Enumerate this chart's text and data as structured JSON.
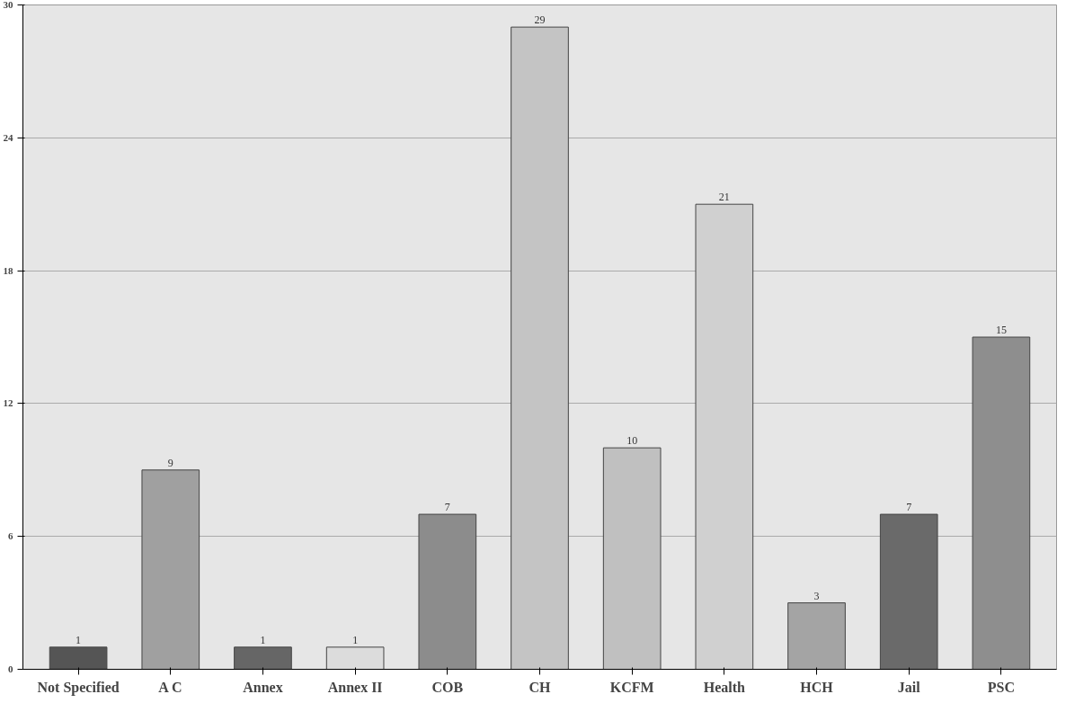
{
  "chart_data": {
    "type": "bar",
    "categories": [
      "Not Specified",
      "A C",
      "Annex",
      "Annex II",
      "COB",
      "CH",
      "KCFM",
      "Health",
      "HCH",
      "Jail",
      "PSC"
    ],
    "values": [
      1,
      9,
      1,
      1,
      7,
      29,
      10,
      21,
      3,
      7,
      15
    ],
    "colors": [
      "#555555",
      "#a0a0a0",
      "#666666",
      "#dcdcdc",
      "#8c8c8c",
      "#c4c4c4",
      "#c0c0c0",
      "#d0d0d0",
      "#a4a4a4",
      "#6a6a6a",
      "#8e8e8e"
    ],
    "ylim": [
      0,
      30
    ],
    "yticks": [
      0,
      6,
      12,
      18,
      24,
      30
    ],
    "grid": "y",
    "data_labels": true
  }
}
